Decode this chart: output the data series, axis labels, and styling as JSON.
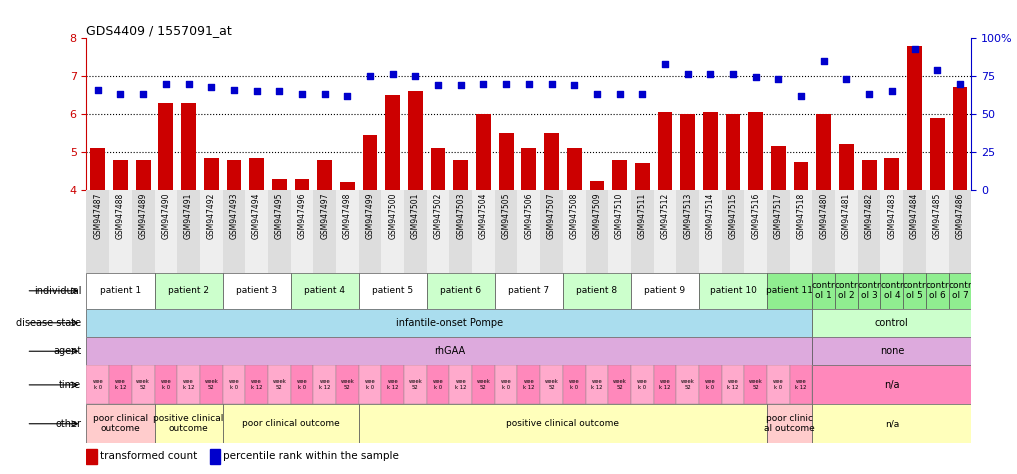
{
  "title": "GDS4409 / 1557091_at",
  "samples": [
    "GSM947487",
    "GSM947488",
    "GSM947489",
    "GSM947490",
    "GSM947491",
    "GSM947492",
    "GSM947493",
    "GSM947494",
    "GSM947495",
    "GSM947496",
    "GSM947497",
    "GSM947498",
    "GSM947499",
    "GSM947500",
    "GSM947501",
    "GSM947502",
    "GSM947503",
    "GSM947504",
    "GSM947505",
    "GSM947506",
    "GSM947507",
    "GSM947508",
    "GSM947509",
    "GSM947510",
    "GSM947511",
    "GSM947512",
    "GSM947513",
    "GSM947514",
    "GSM947515",
    "GSM947516",
    "GSM947517",
    "GSM947518",
    "GSM947480",
    "GSM947481",
    "GSM947482",
    "GSM947483",
    "GSM947484",
    "GSM947485",
    "GSM947486"
  ],
  "bar_values": [
    5.1,
    4.8,
    4.8,
    6.3,
    6.3,
    4.85,
    4.8,
    4.85,
    4.3,
    4.3,
    4.8,
    4.2,
    5.45,
    6.5,
    6.6,
    5.1,
    4.8,
    6.0,
    5.5,
    5.1,
    5.5,
    5.1,
    4.25,
    4.8,
    4.7,
    6.05,
    6.0,
    6.05,
    6.0,
    6.05,
    5.15,
    4.75,
    6.0,
    5.2,
    4.8,
    4.85,
    7.8,
    5.9,
    6.7
  ],
  "percentile_values": [
    66,
    63,
    63,
    70,
    70,
    68,
    66,
    65,
    65,
    63,
    63,
    62,
    75,
    76,
    75,
    69,
    69,
    70,
    70,
    70,
    70,
    69,
    63,
    63,
    63,
    83,
    76,
    76,
    76,
    74,
    73,
    62,
    85,
    73,
    63,
    65,
    93,
    79,
    70
  ],
  "bar_color": "#cc0000",
  "scatter_color": "#0000cc",
  "individual_groups": [
    {
      "label": "patient 1",
      "start": 0,
      "end": 3,
      "color": "#ffffff"
    },
    {
      "label": "patient 2",
      "start": 3,
      "end": 6,
      "color": "#ccffcc"
    },
    {
      "label": "patient 3",
      "start": 6,
      "end": 9,
      "color": "#ffffff"
    },
    {
      "label": "patient 4",
      "start": 9,
      "end": 12,
      "color": "#ccffcc"
    },
    {
      "label": "patient 5",
      "start": 12,
      "end": 15,
      "color": "#ffffff"
    },
    {
      "label": "patient 6",
      "start": 15,
      "end": 18,
      "color": "#ccffcc"
    },
    {
      "label": "patient 7",
      "start": 18,
      "end": 21,
      "color": "#ffffff"
    },
    {
      "label": "patient 8",
      "start": 21,
      "end": 24,
      "color": "#ccffcc"
    },
    {
      "label": "patient 9",
      "start": 24,
      "end": 27,
      "color": "#ffffff"
    },
    {
      "label": "patient 10",
      "start": 27,
      "end": 30,
      "color": "#ccffcc"
    },
    {
      "label": "patient 11",
      "start": 30,
      "end": 32,
      "color": "#90ee90"
    },
    {
      "label": "contr\nol 1",
      "start": 32,
      "end": 33,
      "color": "#90ee90"
    },
    {
      "label": "contr\nol 2",
      "start": 33,
      "end": 34,
      "color": "#90ee90"
    },
    {
      "label": "contr\nol 3",
      "start": 34,
      "end": 35,
      "color": "#90ee90"
    },
    {
      "label": "contr\nol 4",
      "start": 35,
      "end": 36,
      "color": "#90ee90"
    },
    {
      "label": "contr\nol 5",
      "start": 36,
      "end": 37,
      "color": "#90ee90"
    },
    {
      "label": "contr\nol 6",
      "start": 37,
      "end": 38,
      "color": "#90ee90"
    },
    {
      "label": "contr\nol 7",
      "start": 38,
      "end": 39,
      "color": "#90ee90"
    }
  ],
  "disease_state_groups": [
    {
      "label": "infantile-onset Pompe",
      "start": 0,
      "end": 32,
      "color": "#aaddee"
    },
    {
      "label": "control",
      "start": 32,
      "end": 39,
      "color": "#ccffcc"
    }
  ],
  "agent_groups": [
    {
      "label": "rhGAA",
      "start": 0,
      "end": 32,
      "color": "#ddaadd"
    },
    {
      "label": "none",
      "start": 32,
      "end": 39,
      "color": "#ddaadd"
    }
  ],
  "time_groups_left": [
    {
      "start": 0,
      "end": 32,
      "color": "#ffaacc"
    }
  ],
  "time_groups_right": [
    {
      "label": "n/a",
      "start": 32,
      "end": 39,
      "color": "#ff99bb"
    }
  ],
  "time_period_labels": [
    "wee\nk 0",
    "wee\nk 12",
    "week\n52"
  ],
  "other_groups": [
    {
      "label": "poor clinical\noutcome",
      "start": 0,
      "end": 3,
      "color": "#ffcccc"
    },
    {
      "label": "positive clinical\noutcome",
      "start": 3,
      "end": 6,
      "color": "#ffffbb"
    },
    {
      "label": "poor clinical outcome",
      "start": 6,
      "end": 12,
      "color": "#ffffbb"
    },
    {
      "label": "positive clinical outcome",
      "start": 12,
      "end": 30,
      "color": "#ffffbb"
    },
    {
      "label": "poor clinic\nal outcome",
      "start": 30,
      "end": 32,
      "color": "#ffcccc"
    },
    {
      "label": "n/a",
      "start": 32,
      "end": 39,
      "color": "#ffffbb"
    }
  ],
  "row_labels": [
    "individual",
    "disease state",
    "agent",
    "time",
    "other"
  ]
}
